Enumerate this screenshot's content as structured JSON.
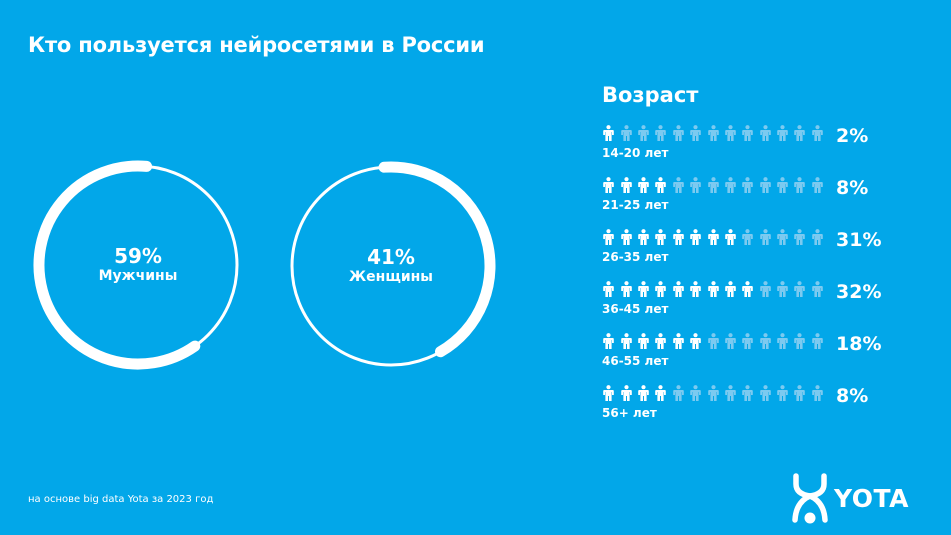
{
  "title": "Кто пользуется нейросетями в России",
  "gender": [
    {
      "percent": "59%",
      "label": "Мужчины",
      "value": 59
    },
    {
      "percent": "41%",
      "label": "Женщины",
      "value": 41
    }
  ],
  "age": {
    "title": "Возраст",
    "figures_per_row": 13,
    "rows": [
      {
        "label": "14-20 лет",
        "percent": "2%",
        "filled": 1
      },
      {
        "label": "21-25 лет",
        "percent": "8%",
        "filled": 4
      },
      {
        "label": "26-35 лет",
        "percent": "31%",
        "filled": 8
      },
      {
        "label": "36-45 лет",
        "percent": "32%",
        "filled": 9
      },
      {
        "label": "46-55 лет",
        "percent": "18%",
        "filled": 6
      },
      {
        "label": "56+ лет",
        "percent": "8%",
        "filled": 4
      }
    ]
  },
  "footnote": "на основе big data Yota за 2023 год",
  "brand": {
    "name": "YOTA",
    "icon": "yota-logo-icon"
  },
  "colors": {
    "background": "#02a7e9",
    "filled": "#ffffff",
    "unfilled": "#7ccaf0"
  },
  "chart_data": [
    {
      "type": "pie",
      "title": "Кто пользуется нейросетями в России",
      "categories": [
        "Мужчины",
        "Женщины"
      ],
      "values": [
        59,
        41
      ]
    },
    {
      "type": "bar",
      "title": "Возраст",
      "categories": [
        "14-20 лет",
        "21-25 лет",
        "26-35 лет",
        "36-45 лет",
        "46-55 лет",
        "56+ лет"
      ],
      "values": [
        2,
        8,
        31,
        32,
        18,
        8
      ],
      "ylabel": "%"
    }
  ]
}
